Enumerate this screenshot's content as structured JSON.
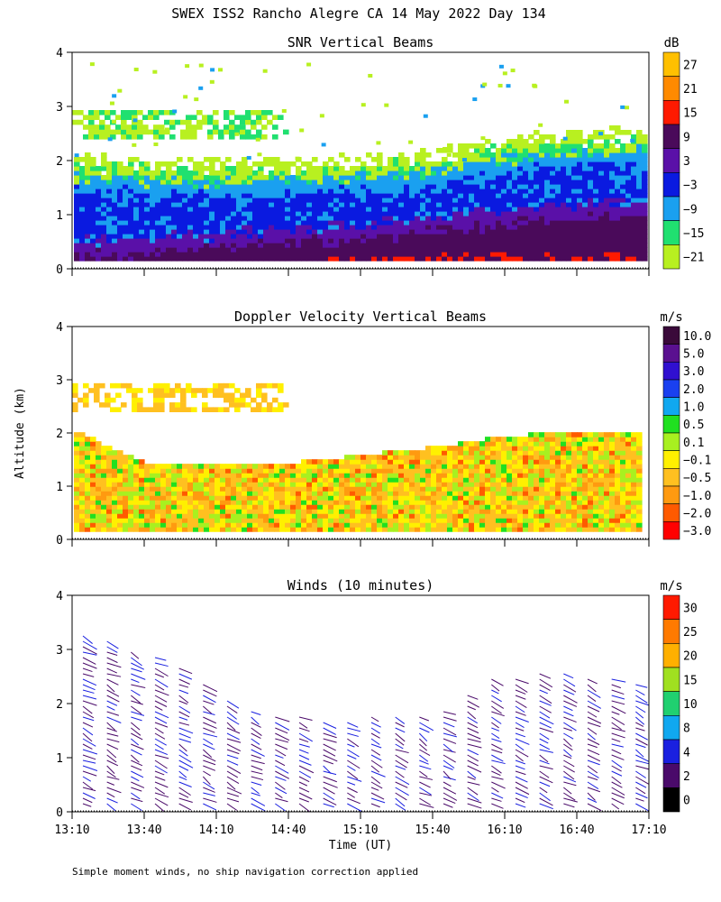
{
  "title": "SWEX ISS2 Rancho Alegre CA  14 May 2022 Day 134",
  "y_axis_label": "Altitude (km)",
  "x_axis_label": "Time (UT)",
  "footnote": "Simple moment winds, no ship navigation correction applied",
  "x_ticks": [
    "13:10",
    "13:40",
    "14:10",
    "14:40",
    "15:10",
    "15:40",
    "16:10",
    "16:40",
    "17:10"
  ],
  "y_ticks": [
    "0",
    "1",
    "2",
    "3",
    "4"
  ],
  "panels": [
    {
      "title": "SNR Vertical Beams",
      "unit": "dB",
      "colorbar": {
        "labels": [
          "27",
          "21",
          "15",
          "9",
          "3",
          "−3",
          "−9",
          "−15",
          "−21"
        ],
        "colors": [
          "#ffc000",
          "#ff8a00",
          "#ff1a00",
          "#4a0a5a",
          "#5a10a8",
          "#0a1ae0",
          "#1aa0f0",
          "#20e070",
          "#b8f020"
        ]
      }
    },
    {
      "title": "Doppler Velocity Vertical Beams",
      "unit": "m/s",
      "colorbar": {
        "labels": [
          "10.0",
          "5.0",
          "3.0",
          "2.0",
          "1.0",
          "0.5",
          "0.1",
          "−0.1",
          "−0.5",
          "−1.0",
          "−2.0",
          "−3.0"
        ],
        "colors": [
          "#3a0a3a",
          "#5a1090",
          "#3010d0",
          "#1a40f0",
          "#10a8f0",
          "#20e020",
          "#a8f020",
          "#fff000",
          "#ffc020",
          "#ff9a10",
          "#ff5a00",
          "#ff0000"
        ]
      }
    },
    {
      "title": "Winds (10 minutes)",
      "unit": "m/s",
      "colorbar": {
        "labels": [
          "30",
          "25",
          "20",
          "15",
          "10",
          "8",
          "4",
          "2",
          "0"
        ],
        "colors": [
          "#ff1a00",
          "#ff7a00",
          "#ffb000",
          "#a0e020",
          "#20d070",
          "#10a8f0",
          "#1a20e0",
          "#4a0a6a",
          "#000000"
        ]
      }
    }
  ],
  "chart_data": [
    {
      "type": "heatmap",
      "title": "SNR Vertical Beams",
      "xlabel": "Time (UT)",
      "ylabel": "Altitude (km)",
      "xlim": [
        "13:10",
        "17:10"
      ],
      "ylim": [
        0,
        4
      ],
      "colorbar_unit": "dB",
      "colorbar_range": [
        -21,
        27
      ],
      "layers": [
        {
          "label": "−3 to 3 dB",
          "altitude_top_km": [
            1.4,
            1.35,
            1.3,
            1.35,
            1.4,
            1.5,
            1.75,
            1.85,
            1.9
          ]
        },
        {
          "label": "3 to 9 dB",
          "altitude_top_km": [
            0.2,
            0.25,
            0.35,
            0.45,
            0.55,
            0.65,
            0.8,
            0.9,
            0.95
          ]
        },
        {
          "label": "15 dB and above",
          "altitude_top_km": [
            0.0,
            0.0,
            0.0,
            0.0,
            0.1,
            0.15,
            0.15,
            0.15,
            0.15
          ]
        }
      ],
      "upper_layer_km": [
        2.4,
        2.9
      ],
      "upper_layer_time": [
        "13:10",
        "14:40"
      ]
    },
    {
      "type": "heatmap",
      "title": "Doppler Velocity Vertical Beams",
      "xlabel": "Time (UT)",
      "ylabel": "Altitude (km)",
      "xlim": [
        "13:10",
        "17:10"
      ],
      "ylim": [
        0,
        4
      ],
      "colorbar_unit": "m/s",
      "colorbar_range": [
        -3.0,
        10.0
      ],
      "data_top_km": [
        2.0,
        1.4,
        1.35,
        1.4,
        1.55,
        1.7,
        1.9,
        2.0,
        2.0
      ],
      "dominant_range_m_s": [
        -2.0,
        0.1
      ],
      "upper_layer_km": [
        2.4,
        2.9
      ],
      "upper_layer_time": [
        "13:10",
        "14:40"
      ]
    },
    {
      "type": "scatter",
      "title": "Winds (10 minutes)",
      "xlabel": "Time (UT)",
      "ylabel": "Altitude (km)",
      "xlim": [
        "13:10",
        "17:10"
      ],
      "ylim": [
        0,
        4
      ],
      "colorbar_unit": "m/s",
      "colorbar_range": [
        0,
        30
      ],
      "profile_times": [
        "13:10",
        "13:20",
        "13:30",
        "13:40",
        "13:50",
        "14:00",
        "14:10",
        "14:20",
        "14:30",
        "14:40",
        "14:50",
        "15:00",
        "15:10",
        "15:20",
        "15:30",
        "15:40",
        "15:50",
        "16:00",
        "16:10",
        "16:20",
        "16:30",
        "16:40",
        "16:50",
        "17:00"
      ],
      "profile_top_km": [
        3.3,
        3.2,
        3.0,
        2.9,
        2.7,
        2.4,
        2.1,
        1.9,
        1.8,
        1.8,
        1.7,
        1.7,
        1.8,
        1.8,
        1.8,
        1.9,
        2.2,
        2.5,
        2.5,
        2.6,
        2.6,
        2.5,
        2.5,
        2.4
      ],
      "typical_speed_m_s": [
        4,
        8
      ]
    }
  ]
}
